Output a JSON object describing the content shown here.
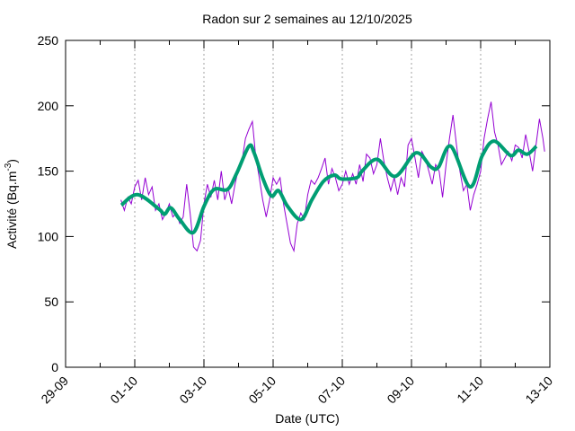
{
  "chart_data": {
    "type": "line",
    "title": "Radon sur 2 semaines au 12/10/2025",
    "xlabel": "Date (UTC)",
    "ylabel_main": "Activité (Bq.m",
    "ylabel_sup": "-3",
    "ylabel_end": ")",
    "x_unit": "days since 29-09 00:00 UTC",
    "xlim": [
      0,
      14
    ],
    "ylim": [
      0,
      250
    ],
    "x_ticks": [
      {
        "value": 0,
        "label": "29-09"
      },
      {
        "value": 2,
        "label": "01-10"
      },
      {
        "value": 4,
        "label": "03-10"
      },
      {
        "value": 6,
        "label": "05-10"
      },
      {
        "value": 8,
        "label": "07-10"
      },
      {
        "value": 10,
        "label": "09-10"
      },
      {
        "value": 12,
        "label": "11-10"
      },
      {
        "value": 14,
        "label": "13-10"
      }
    ],
    "y_ticks": [
      0,
      50,
      100,
      150,
      200,
      250
    ],
    "grid": "vertical dashed at major x ticks",
    "legend": "none",
    "colors": {
      "raw": "#9400d3",
      "smooth": "#009e73",
      "grid": "#a0a0a0"
    },
    "series": [
      {
        "name": "raw",
        "points": [
          [
            1.6,
            128
          ],
          [
            1.7,
            120
          ],
          [
            1.8,
            130
          ],
          [
            1.9,
            125
          ],
          [
            2.0,
            138
          ],
          [
            2.1,
            143
          ],
          [
            2.2,
            128
          ],
          [
            2.3,
            145
          ],
          [
            2.4,
            132
          ],
          [
            2.5,
            138
          ],
          [
            2.6,
            120
          ],
          [
            2.7,
            125
          ],
          [
            2.8,
            113
          ],
          [
            2.9,
            118
          ],
          [
            3.0,
            125
          ],
          [
            3.1,
            115
          ],
          [
            3.2,
            118
          ],
          [
            3.3,
            110
          ],
          [
            3.4,
            115
          ],
          [
            3.5,
            140
          ],
          [
            3.6,
            118
          ],
          [
            3.7,
            92
          ],
          [
            3.8,
            89
          ],
          [
            3.9,
            97
          ],
          [
            4.0,
            125
          ],
          [
            4.1,
            140
          ],
          [
            4.2,
            130
          ],
          [
            4.3,
            143
          ],
          [
            4.4,
            128
          ],
          [
            4.5,
            150
          ],
          [
            4.6,
            128
          ],
          [
            4.7,
            137
          ],
          [
            4.8,
            125
          ],
          [
            4.9,
            140
          ],
          [
            5.0,
            152
          ],
          [
            5.1,
            158
          ],
          [
            5.2,
            175
          ],
          [
            5.3,
            182
          ],
          [
            5.4,
            188
          ],
          [
            5.5,
            160
          ],
          [
            5.6,
            145
          ],
          [
            5.7,
            128
          ],
          [
            5.8,
            115
          ],
          [
            5.9,
            128
          ],
          [
            6.0,
            145
          ],
          [
            6.1,
            140
          ],
          [
            6.2,
            145
          ],
          [
            6.3,
            125
          ],
          [
            6.4,
            110
          ],
          [
            6.5,
            95
          ],
          [
            6.6,
            89
          ],
          [
            6.7,
            110
          ],
          [
            6.8,
            118
          ],
          [
            6.9,
            113
          ],
          [
            7.0,
            132
          ],
          [
            7.1,
            143
          ],
          [
            7.2,
            140
          ],
          [
            7.3,
            145
          ],
          [
            7.4,
            152
          ],
          [
            7.5,
            160
          ],
          [
            7.6,
            140
          ],
          [
            7.7,
            152
          ],
          [
            7.8,
            145
          ],
          [
            7.9,
            135
          ],
          [
            8.0,
            140
          ],
          [
            8.1,
            150
          ],
          [
            8.2,
            140
          ],
          [
            8.3,
            148
          ],
          [
            8.4,
            140
          ],
          [
            8.5,
            155
          ],
          [
            8.6,
            142
          ],
          [
            8.7,
            163
          ],
          [
            8.8,
            160
          ],
          [
            8.9,
            148
          ],
          [
            9.0,
            155
          ],
          [
            9.1,
            175
          ],
          [
            9.2,
            158
          ],
          [
            9.3,
            145
          ],
          [
            9.4,
            135
          ],
          [
            9.5,
            145
          ],
          [
            9.6,
            132
          ],
          [
            9.7,
            145
          ],
          [
            9.8,
            138
          ],
          [
            9.9,
            170
          ],
          [
            10.0,
            175
          ],
          [
            10.1,
            160
          ],
          [
            10.2,
            145
          ],
          [
            10.3,
            165
          ],
          [
            10.4,
            160
          ],
          [
            10.5,
            150
          ],
          [
            10.6,
            140
          ],
          [
            10.7,
            155
          ],
          [
            10.8,
            150
          ],
          [
            10.9,
            130
          ],
          [
            11.0,
            155
          ],
          [
            11.1,
            175
          ],
          [
            11.2,
            193
          ],
          [
            11.3,
            170
          ],
          [
            11.4,
            150
          ],
          [
            11.5,
            135
          ],
          [
            11.6,
            140
          ],
          [
            11.7,
            120
          ],
          [
            11.8,
            132
          ],
          [
            11.9,
            140
          ],
          [
            12.0,
            150
          ],
          [
            12.1,
            175
          ],
          [
            12.2,
            190
          ],
          [
            12.3,
            203
          ],
          [
            12.4,
            180
          ],
          [
            12.5,
            170
          ],
          [
            12.6,
            155
          ],
          [
            12.7,
            160
          ],
          [
            12.8,
            165
          ],
          [
            12.9,
            158
          ],
          [
            13.0,
            170
          ],
          [
            13.1,
            168
          ],
          [
            13.2,
            160
          ],
          [
            13.3,
            178
          ],
          [
            13.4,
            165
          ],
          [
            13.5,
            150
          ],
          [
            13.6,
            170
          ],
          [
            13.7,
            190
          ],
          [
            13.8,
            175
          ],
          [
            13.85,
            165
          ]
        ]
      },
      {
        "name": "smooth",
        "points": [
          [
            1.61,
            124
          ],
          [
            2.08,
            132
          ],
          [
            2.7,
            121
          ],
          [
            2.86,
            117
          ],
          [
            3.04,
            122
          ],
          [
            3.3,
            113
          ],
          [
            3.69,
            103
          ],
          [
            4.0,
            123
          ],
          [
            4.29,
            136
          ],
          [
            4.68,
            136
          ],
          [
            4.94,
            148
          ],
          [
            5.3,
            169
          ],
          [
            5.45,
            164
          ],
          [
            5.71,
            144
          ],
          [
            5.95,
            131
          ],
          [
            6.16,
            135
          ],
          [
            6.42,
            123
          ],
          [
            6.81,
            113
          ],
          [
            7.12,
            128
          ],
          [
            7.45,
            142
          ],
          [
            7.77,
            147
          ],
          [
            7.97,
            144
          ],
          [
            8.42,
            145
          ],
          [
            8.57,
            150
          ],
          [
            9.01,
            159
          ],
          [
            9.53,
            146
          ],
          [
            10.13,
            164
          ],
          [
            10.57,
            153
          ],
          [
            10.78,
            153
          ],
          [
            11.14,
            169
          ],
          [
            11.69,
            138
          ],
          [
            12.05,
            162
          ],
          [
            12.39,
            173
          ],
          [
            12.86,
            162
          ],
          [
            13.09,
            166
          ],
          [
            13.35,
            163
          ],
          [
            13.61,
            169
          ]
        ]
      }
    ]
  }
}
